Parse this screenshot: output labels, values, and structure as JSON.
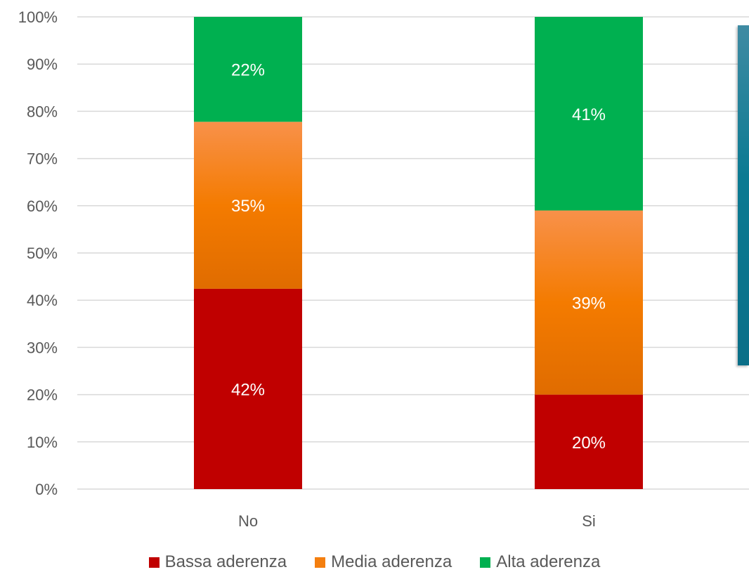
{
  "chart_data": {
    "type": "bar",
    "stacked": true,
    "percent_stacked": true,
    "categories": [
      "No",
      "Si"
    ],
    "series": [
      {
        "name": "Bassa aderenza",
        "values": [
          42,
          20
        ],
        "labels": [
          "42%",
          "20%"
        ],
        "color": "#c00000"
      },
      {
        "name": "Media aderenza",
        "values": [
          35,
          39
        ],
        "labels": [
          "35%",
          "39%"
        ],
        "color": "#f47f0f"
      },
      {
        "name": "Alta aderenza",
        "values": [
          22,
          41
        ],
        "labels": [
          "22%",
          "41%"
        ],
        "color": "#00b050"
      }
    ],
    "y_ticks": [
      "0%",
      "10%",
      "20%",
      "30%",
      "40%",
      "50%",
      "60%",
      "70%",
      "80%",
      "90%",
      "100%"
    ],
    "ylim": [
      0,
      100
    ],
    "grid": true,
    "legend_position": "bottom"
  }
}
